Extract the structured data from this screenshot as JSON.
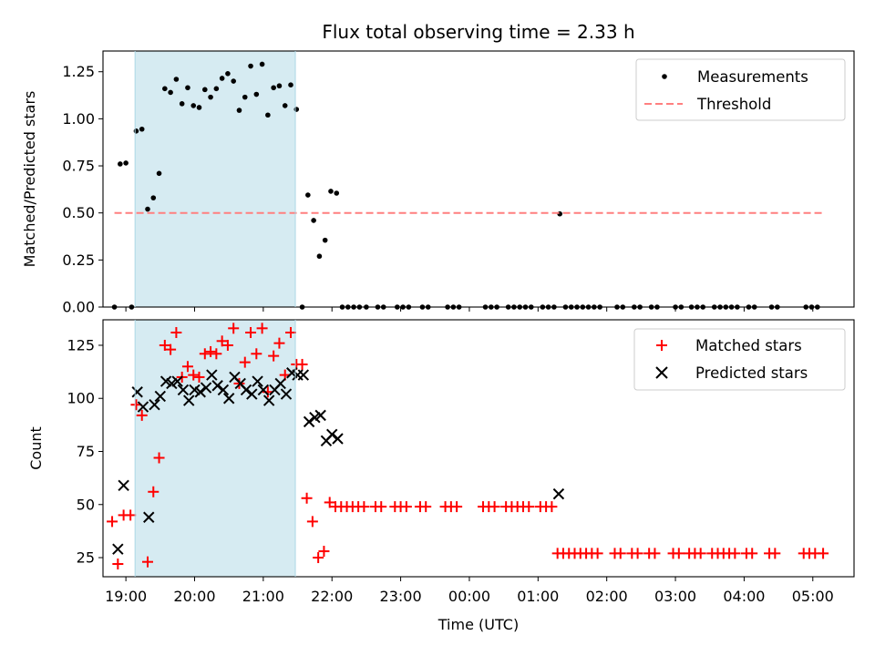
{
  "chart_data": [
    {
      "type": "scatter",
      "title": "Flux total observing time = 2.33 h",
      "xlabel": "",
      "ylabel": "Matched/Predicted stars",
      "ylim": [
        0,
        1.36
      ],
      "yticks": [
        "0.00",
        "0.25",
        "0.50",
        "0.75",
        "1.00",
        "1.25"
      ],
      "xlim": [
        "18:40",
        "05:36"
      ],
      "shaded_span": [
        "19:08",
        "21:28"
      ],
      "shade_color": "#add8e6",
      "legend_position": "upper right",
      "series": [
        {
          "name": "Measurements",
          "color": "#000000",
          "marker": "dot",
          "points": [
            [
              "18:50",
              0.0
            ],
            [
              "18:55",
              0.76
            ],
            [
              "19:00",
              0.765
            ],
            [
              "19:05",
              0.0
            ],
            [
              "19:09",
              0.935
            ],
            [
              "19:14",
              0.945
            ],
            [
              "19:19",
              0.52
            ],
            [
              "19:24",
              0.58
            ],
            [
              "19:29",
              0.71
            ],
            [
              "19:34",
              1.16
            ],
            [
              "19:39",
              1.14
            ],
            [
              "19:44",
              1.21
            ],
            [
              "19:49",
              1.08
            ],
            [
              "19:54",
              1.165
            ],
            [
              "19:59",
              1.07
            ],
            [
              "20:04",
              1.06
            ],
            [
              "20:09",
              1.155
            ],
            [
              "20:14",
              1.115
            ],
            [
              "20:19",
              1.16
            ],
            [
              "20:24",
              1.215
            ],
            [
              "20:29",
              1.24
            ],
            [
              "20:34",
              1.2
            ],
            [
              "20:39",
              1.045
            ],
            [
              "20:44",
              1.115
            ],
            [
              "20:49",
              1.28
            ],
            [
              "20:54",
              1.13
            ],
            [
              "20:59",
              1.29
            ],
            [
              "21:04",
              1.02
            ],
            [
              "21:09",
              1.165
            ],
            [
              "21:14",
              1.175
            ],
            [
              "21:19",
              1.07
            ],
            [
              "21:24",
              1.18
            ],
            [
              "21:29",
              1.05
            ],
            [
              "21:34",
              0.0
            ],
            [
              "21:39",
              0.595
            ],
            [
              "21:44",
              0.46
            ],
            [
              "21:49",
              0.27
            ],
            [
              "21:54",
              0.355
            ],
            [
              "21:59",
              0.615
            ],
            [
              "22:04",
              0.605
            ],
            [
              "22:09",
              0.0
            ],
            [
              "22:14",
              0.0
            ],
            [
              "22:19",
              0.0
            ],
            [
              "22:24",
              0.0
            ],
            [
              "22:30",
              0.0
            ],
            [
              "22:40",
              0.0
            ],
            [
              "22:45",
              0.0
            ],
            [
              "22:57",
              0.0
            ],
            [
              "23:02",
              0.0
            ],
            [
              "23:07",
              0.0
            ],
            [
              "23:19",
              0.0
            ],
            [
              "23:24",
              0.0
            ],
            [
              "23:41",
              0.0
            ],
            [
              "23:46",
              0.0
            ],
            [
              "23:51",
              0.0
            ],
            [
              "00:14",
              0.0
            ],
            [
              "00:19",
              0.0
            ],
            [
              "00:24",
              0.0
            ],
            [
              "00:34",
              0.0
            ],
            [
              "00:39",
              0.0
            ],
            [
              "00:44",
              0.0
            ],
            [
              "00:49",
              0.0
            ],
            [
              "00:54",
              0.0
            ],
            [
              "01:04",
              0.0
            ],
            [
              "01:09",
              0.0
            ],
            [
              "01:14",
              0.0
            ],
            [
              "01:19",
              0.495
            ],
            [
              "01:24",
              0.0
            ],
            [
              "01:29",
              0.0
            ],
            [
              "01:34",
              0.0
            ],
            [
              "01:39",
              0.0
            ],
            [
              "01:44",
              0.0
            ],
            [
              "01:49",
              0.0
            ],
            [
              "01:54",
              0.0
            ],
            [
              "02:09",
              0.0
            ],
            [
              "02:14",
              0.0
            ],
            [
              "02:24",
              0.0
            ],
            [
              "02:29",
              0.0
            ],
            [
              "02:39",
              0.0
            ],
            [
              "02:44",
              0.0
            ],
            [
              "03:00",
              0.0
            ],
            [
              "03:05",
              0.0
            ],
            [
              "03:14",
              0.0
            ],
            [
              "03:19",
              0.0
            ],
            [
              "03:24",
              0.0
            ],
            [
              "03:34",
              0.0
            ],
            [
              "03:39",
              0.0
            ],
            [
              "03:44",
              0.0
            ],
            [
              "03:49",
              0.0
            ],
            [
              "03:54",
              0.0
            ],
            [
              "04:04",
              0.0
            ],
            [
              "04:09",
              0.0
            ],
            [
              "04:24",
              0.0
            ],
            [
              "04:29",
              0.0
            ],
            [
              "04:54",
              0.0
            ],
            [
              "04:59",
              0.0
            ],
            [
              "05:04",
              0.0
            ]
          ]
        },
        {
          "name": "Threshold",
          "color": "#ff7f7f",
          "style": "dashed",
          "points": [
            [
              "18:50",
              0.5
            ],
            [
              "05:09",
              0.5
            ]
          ]
        }
      ]
    },
    {
      "type": "scatter",
      "title": "",
      "xlabel": "Time (UTC)",
      "ylabel": "Count",
      "ylim": [
        16,
        137
      ],
      "yticks": [
        "25",
        "50",
        "75",
        "100",
        "125"
      ],
      "xlim": [
        "18:40",
        "05:36"
      ],
      "xticks": [
        "19:00",
        "20:00",
        "21:00",
        "22:00",
        "23:00",
        "00:00",
        "01:00",
        "02:00",
        "03:00",
        "04:00",
        "05:00"
      ],
      "shaded_span": [
        "19:08",
        "21:28"
      ],
      "shade_color": "#add8e6",
      "legend_position": "upper right",
      "series": [
        {
          "name": "Matched stars",
          "color": "#ff0000",
          "marker": "plus",
          "points": [
            [
              "18:48",
              42
            ],
            [
              "18:53",
              22
            ],
            [
              "18:58",
              45
            ],
            [
              "19:04",
              45
            ],
            [
              "19:09",
              97
            ],
            [
              "19:14",
              92
            ],
            [
              "19:19",
              23
            ],
            [
              "19:24",
              56
            ],
            [
              "19:29",
              72
            ],
            [
              "19:34",
              125
            ],
            [
              "19:39",
              123
            ],
            [
              "19:44",
              131
            ],
            [
              "19:49",
              110
            ],
            [
              "19:54",
              115
            ],
            [
              "19:59",
              111
            ],
            [
              "20:04",
              110
            ],
            [
              "20:09",
              121
            ],
            [
              "20:14",
              122
            ],
            [
              "20:19",
              121
            ],
            [
              "20:24",
              127
            ],
            [
              "20:29",
              125
            ],
            [
              "20:34",
              133
            ],
            [
              "20:39",
              107
            ],
            [
              "20:44",
              117
            ],
            [
              "20:49",
              131
            ],
            [
              "20:54",
              121
            ],
            [
              "20:59",
              133
            ],
            [
              "21:04",
              103
            ],
            [
              "21:09",
              120
            ],
            [
              "21:14",
              126
            ],
            [
              "21:19",
              111
            ],
            [
              "21:24",
              131
            ],
            [
              "21:29",
              116
            ],
            [
              "21:34",
              116
            ],
            [
              "21:38",
              53
            ],
            [
              "21:43",
              42
            ],
            [
              "21:48",
              25
            ],
            [
              "21:53",
              28
            ],
            [
              "21:58",
              51
            ],
            [
              "22:03",
              49
            ],
            [
              "22:08",
              49
            ],
            [
              "22:13",
              49
            ],
            [
              "22:18",
              49
            ],
            [
              "22:23",
              49
            ],
            [
              "22:28",
              49
            ],
            [
              "22:38",
              49
            ],
            [
              "22:43",
              49
            ],
            [
              "22:55",
              49
            ],
            [
              "23:00",
              49
            ],
            [
              "23:05",
              49
            ],
            [
              "23:17",
              49
            ],
            [
              "23:22",
              49
            ],
            [
              "23:39",
              49
            ],
            [
              "23:44",
              49
            ],
            [
              "23:49",
              49
            ],
            [
              "00:12",
              49
            ],
            [
              "00:17",
              49
            ],
            [
              "00:22",
              49
            ],
            [
              "00:32",
              49
            ],
            [
              "00:37",
              49
            ],
            [
              "00:42",
              49
            ],
            [
              "00:47",
              49
            ],
            [
              "00:52",
              49
            ],
            [
              "01:02",
              49
            ],
            [
              "01:07",
              49
            ],
            [
              "01:12",
              49
            ],
            [
              "01:17",
              27
            ],
            [
              "01:22",
              27
            ],
            [
              "01:27",
              27
            ],
            [
              "01:32",
              27
            ],
            [
              "01:37",
              27
            ],
            [
              "01:42",
              27
            ],
            [
              "01:47",
              27
            ],
            [
              "01:52",
              27
            ],
            [
              "02:07",
              27
            ],
            [
              "02:12",
              27
            ],
            [
              "02:22",
              27
            ],
            [
              "02:27",
              27
            ],
            [
              "02:37",
              27
            ],
            [
              "02:42",
              27
            ],
            [
              "02:58",
              27
            ],
            [
              "03:03",
              27
            ],
            [
              "03:12",
              27
            ],
            [
              "03:17",
              27
            ],
            [
              "03:22",
              27
            ],
            [
              "03:32",
              27
            ],
            [
              "03:37",
              27
            ],
            [
              "03:42",
              27
            ],
            [
              "03:47",
              27
            ],
            [
              "03:52",
              27
            ],
            [
              "04:02",
              27
            ],
            [
              "04:07",
              27
            ],
            [
              "04:22",
              27
            ],
            [
              "04:27",
              27
            ],
            [
              "04:52",
              27
            ],
            [
              "04:57",
              27
            ],
            [
              "05:02",
              27
            ],
            [
              "05:09",
              27
            ]
          ]
        },
        {
          "name": "Predicted stars",
          "color": "#000000",
          "marker": "x",
          "points": [
            [
              "18:53",
              29
            ],
            [
              "18:58",
              59
            ],
            [
              "19:10",
              103
            ],
            [
              "19:15",
              96
            ],
            [
              "19:20",
              44
            ],
            [
              "19:25",
              97
            ],
            [
              "19:30",
              101
            ],
            [
              "19:35",
              108
            ],
            [
              "19:40",
              107
            ],
            [
              "19:45",
              108
            ],
            [
              "19:50",
              104
            ],
            [
              "19:55",
              99
            ],
            [
              "20:00",
              104
            ],
            [
              "20:05",
              103
            ],
            [
              "20:10",
              105
            ],
            [
              "20:15",
              111
            ],
            [
              "20:20",
              106
            ],
            [
              "20:25",
              104
            ],
            [
              "20:30",
              100
            ],
            [
              "20:35",
              110
            ],
            [
              "20:40",
              107
            ],
            [
              "20:45",
              104
            ],
            [
              "20:50",
              102
            ],
            [
              "20:55",
              108
            ],
            [
              "21:00",
              104
            ],
            [
              "21:05",
              99
            ],
            [
              "21:10",
              104
            ],
            [
              "21:15",
              107
            ],
            [
              "21:20",
              102
            ],
            [
              "21:25",
              112
            ],
            [
              "21:30",
              111
            ],
            [
              "21:35",
              111
            ],
            [
              "21:40",
              89
            ],
            [
              "21:45",
              91
            ],
            [
              "21:50",
              92
            ],
            [
              "21:55",
              80
            ],
            [
              "22:00",
              83
            ],
            [
              "22:05",
              81
            ],
            [
              "01:18",
              55
            ]
          ]
        }
      ]
    }
  ]
}
